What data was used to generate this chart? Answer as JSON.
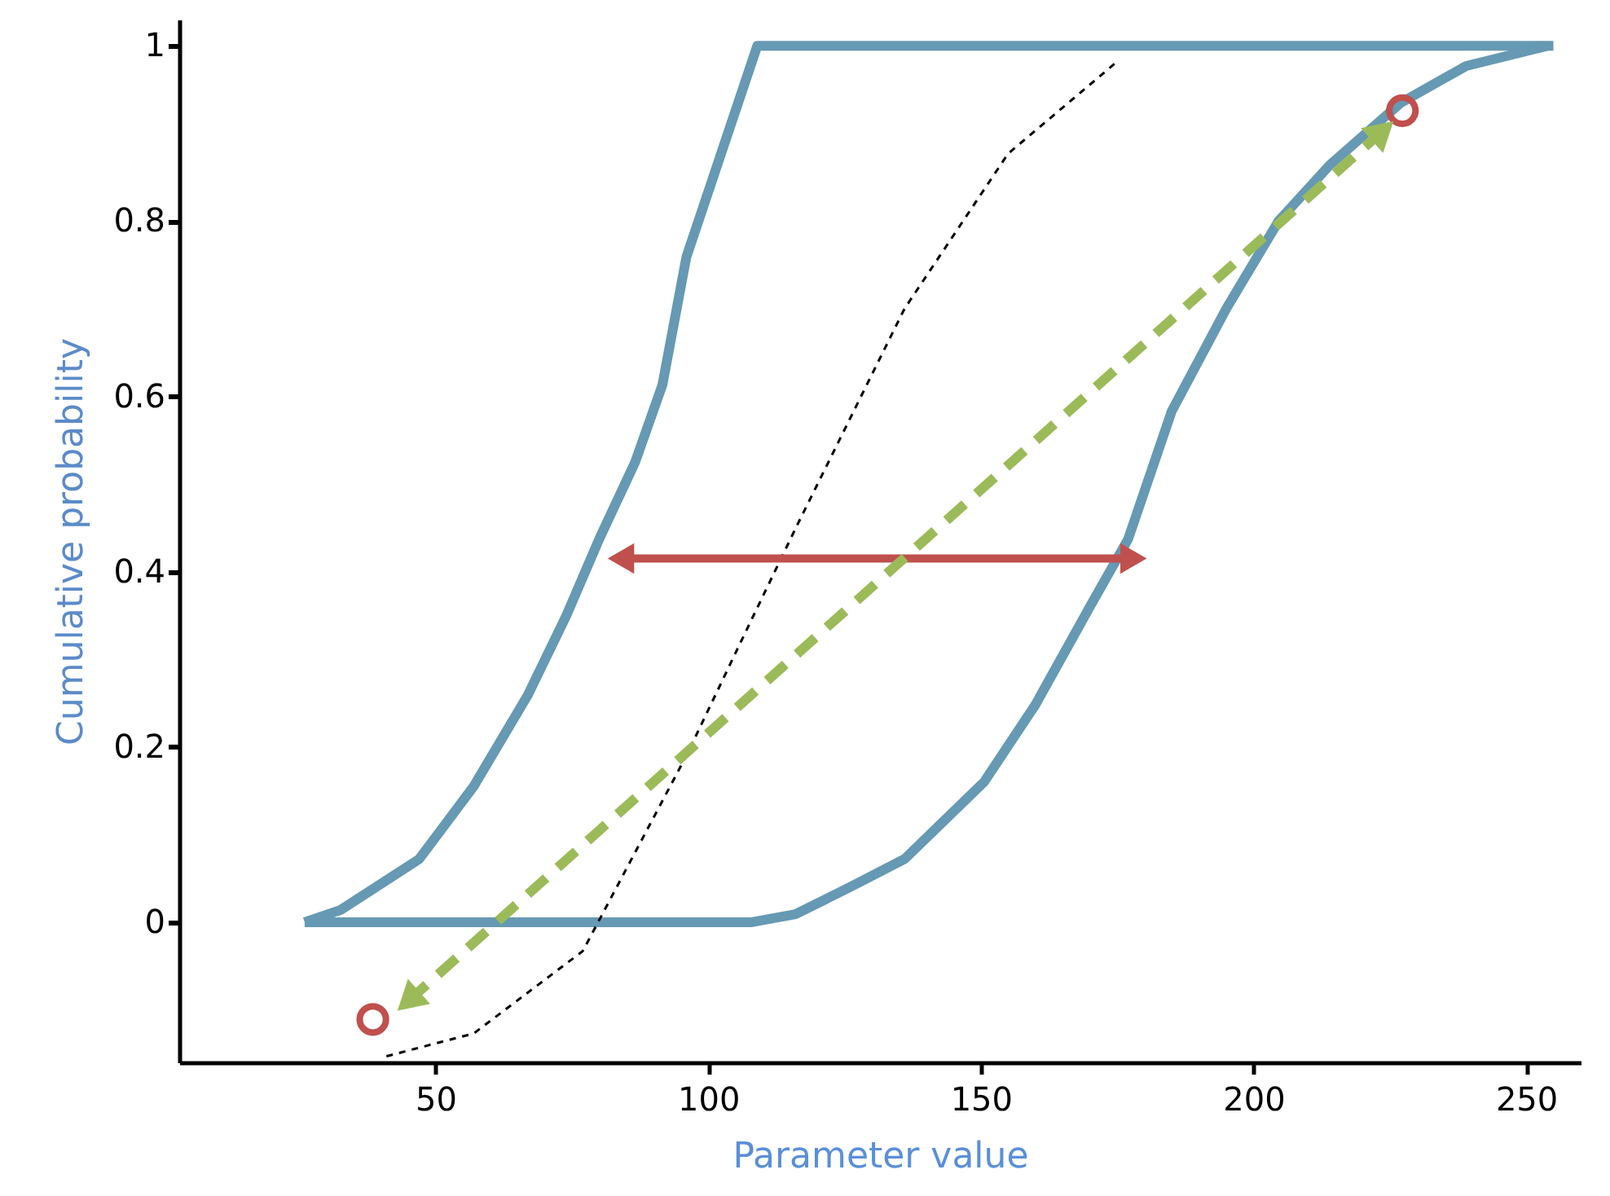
{
  "chart_data": {
    "type": "line",
    "xlabel": "Parameter value",
    "ylabel": "Cumulative probability",
    "xlim": [
      3,
      260
    ],
    "ylim": [
      -0.16,
      1.03
    ],
    "xticks": [
      50,
      100,
      150,
      200,
      250
    ],
    "yticks": [
      0,
      {
        "value": 0.2,
        "label": "0.2"
      },
      {
        "value": 0.4,
        "label": "0.4"
      },
      {
        "value": 0.6,
        "label": "0.6"
      },
      {
        "value": 0.8,
        "label": "0.8"
      },
      1
    ],
    "grid": false,
    "series": [
      {
        "color": "#6699b3",
        "x": [
          26,
          32.6,
          47,
          57,
          67,
          74,
          80,
          86.6,
          91.6,
          96,
          109,
          255
        ],
        "values": [
          0,
          0.014,
          0.072,
          0.155,
          0.26,
          0.35,
          0.437,
          0.525,
          0.613,
          0.759,
          1,
          1
        ]
      },
      {
        "color": "#6699b3",
        "x": [
          26,
          108,
          116,
          126,
          136,
          150.6,
          160,
          170,
          177,
          185,
          195,
          204.6,
          214,
          227,
          239,
          254
        ],
        "values": [
          0,
          0,
          0.009,
          0.04,
          0.072,
          0.16,
          0.248,
          0.36,
          0.437,
          0.583,
          0.7,
          0.8,
          0.864,
          0.935,
          0.977,
          1
        ]
      },
      {
        "color": "#000000",
        "line_style": "dashed",
        "x": [
          41,
          57,
          77,
          96,
          106,
          116,
          136,
          155,
          175
        ],
        "values": [
          -0.153,
          -0.127,
          -0.033,
          0.19,
          0.32,
          0.449,
          0.7,
          0.877,
          0.982
        ]
      },
      {
        "type": "scatter",
        "marker": "circle",
        "color": "#c0504d",
        "x": [
          38.5,
          227.3
        ],
        "values": [
          -0.111,
          0.926
        ]
      },
      {
        "color": "#c0504d",
        "marker": "triangle",
        "x": [
          84,
          178
        ],
        "values": [
          0.415,
          0.415
        ]
      },
      {
        "color": "#9bbb59",
        "line_style": "dashed",
        "marker": "triangle",
        "x": [
          45,
          223.7
        ],
        "values": [
          -0.09,
          0.903
        ]
      }
    ]
  }
}
